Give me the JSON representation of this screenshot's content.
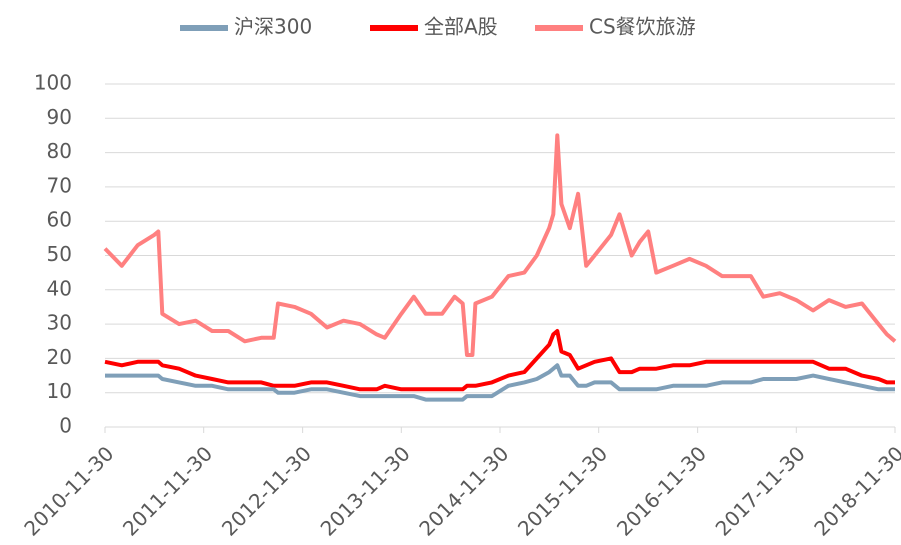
{
  "chart_data": {
    "type": "line",
    "x": [
      "2010-11-30",
      "2011-01-31",
      "2011-03-31",
      "2011-05-31",
      "2011-06-15",
      "2011-06-30",
      "2011-08-31",
      "2011-10-31",
      "2011-12-31",
      "2012-02-29",
      "2012-04-30",
      "2012-06-30",
      "2012-08-15",
      "2012-08-31",
      "2012-10-31",
      "2012-12-31",
      "2013-02-28",
      "2013-04-30",
      "2013-06-30",
      "2013-08-31",
      "2013-09-30",
      "2013-11-30",
      "2014-01-15",
      "2014-02-28",
      "2014-04-30",
      "2014-06-15",
      "2014-07-15",
      "2014-07-31",
      "2014-08-20",
      "2014-08-31",
      "2014-10-31",
      "2014-12-31",
      "2015-02-28",
      "2015-04-15",
      "2015-05-31",
      "2015-06-15",
      "2015-06-30",
      "2015-07-15",
      "2015-08-15",
      "2015-09-15",
      "2015-10-15",
      "2015-11-15",
      "2016-01-15",
      "2016-02-15",
      "2016-03-31",
      "2016-04-30",
      "2016-05-31",
      "2016-06-30",
      "2016-08-31",
      "2016-10-31",
      "2016-12-31",
      "2017-02-28",
      "2017-04-30",
      "2017-06-15",
      "2017-07-31",
      "2017-09-30",
      "2017-11-30",
      "2018-01-31",
      "2018-03-31",
      "2018-05-31",
      "2018-07-31",
      "2018-09-30",
      "2018-10-31",
      "2018-11-30"
    ],
    "series": [
      {
        "name": "沪深300",
        "color": "#7f9fb8",
        "values": [
          15,
          15,
          15,
          15,
          15,
          14,
          13,
          12,
          12,
          11,
          11,
          11,
          11,
          10,
          10,
          11,
          11,
          10,
          9,
          9,
          9,
          9,
          9,
          8,
          8,
          8,
          8,
          9,
          9,
          9,
          9,
          12,
          13,
          14,
          16,
          17,
          18,
          15,
          15,
          12,
          12,
          13,
          13,
          11,
          11,
          11,
          11,
          11,
          12,
          12,
          12,
          13,
          13,
          13,
          14,
          14,
          14,
          15,
          14,
          13,
          12,
          11,
          11,
          11
        ]
      },
      {
        "name": "全部A股",
        "color": "#ff0000",
        "values": [
          19,
          18,
          19,
          19,
          19,
          18,
          17,
          15,
          14,
          13,
          13,
          13,
          12,
          12,
          12,
          13,
          13,
          12,
          11,
          11,
          12,
          11,
          11,
          11,
          11,
          11,
          11,
          12,
          12,
          12,
          13,
          15,
          16,
          20,
          24,
          27,
          28,
          22,
          21,
          17,
          18,
          19,
          20,
          16,
          16,
          17,
          17,
          17,
          18,
          18,
          19,
          19,
          19,
          19,
          19,
          19,
          19,
          19,
          17,
          17,
          15,
          14,
          13,
          13
        ]
      },
      {
        "name": "CS餐饮旅游",
        "color": "#ff8080",
        "values": [
          52,
          47,
          53,
          56,
          57,
          33,
          30,
          31,
          28,
          28,
          25,
          26,
          26,
          36,
          35,
          33,
          29,
          31,
          30,
          27,
          26,
          33,
          38,
          33,
          33,
          38,
          36,
          21,
          21,
          36,
          38,
          44,
          45,
          50,
          58,
          62,
          85,
          65,
          58,
          68,
          47,
          50,
          56,
          62,
          50,
          54,
          57,
          45,
          47,
          49,
          47,
          44,
          44,
          44,
          38,
          39,
          37,
          34,
          37,
          35,
          36,
          30,
          27,
          25
        ]
      }
    ],
    "xticks": [
      "2010-11-30",
      "2011-11-30",
      "2012-11-30",
      "2013-11-30",
      "2014-11-30",
      "2015-11-30",
      "2016-11-30",
      "2017-11-30",
      "2018-11-30"
    ],
    "xlim": [
      "2010-11-30",
      "2018-11-30"
    ],
    "ylim": [
      0,
      100
    ],
    "yticks": [
      0,
      10,
      20,
      30,
      40,
      50,
      60,
      70,
      80,
      90,
      100
    ],
    "grid": true,
    "legend": "top"
  }
}
